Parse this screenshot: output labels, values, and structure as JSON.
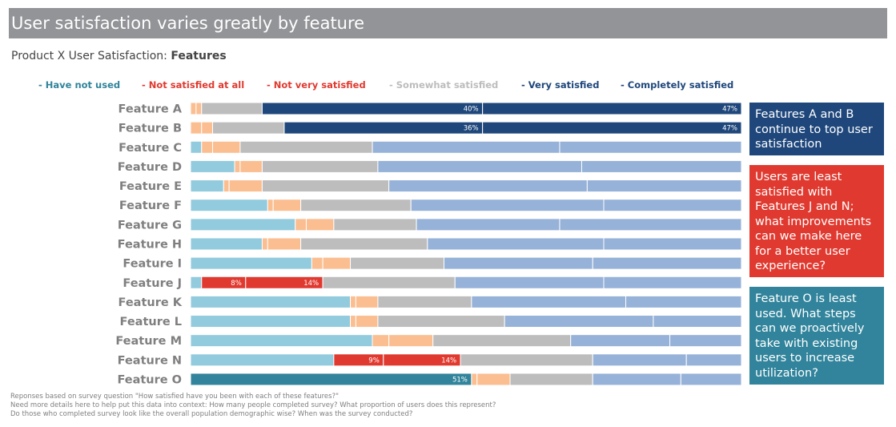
{
  "header": {
    "banner_title": "User satisfaction varies greatly by feature",
    "subtitle_prefix": "Product X User Satisfaction: ",
    "subtitle_bold": "Features"
  },
  "chart_data": {
    "type": "bar",
    "orientation": "horizontal",
    "stacked": true,
    "normalized_to_percent": true,
    "categories": [
      "Feature A",
      "Feature B",
      "Feature C",
      "Feature D",
      "Feature E",
      "Feature F",
      "Feature G",
      "Feature H",
      "Feature I",
      "Feature J",
      "Feature K",
      "Feature L",
      "Feature M",
      "Feature N",
      "Feature O"
    ],
    "series": [
      {
        "name": "Have not used",
        "color": "#92cbdd",
        "values": [
          0,
          0,
          2,
          8,
          6,
          14,
          19,
          13,
          22,
          2,
          29,
          29,
          33,
          26,
          51
        ]
      },
      {
        "name": "Not satisfied at all",
        "color": "#fbbe91",
        "values": [
          1,
          2,
          2,
          1,
          1,
          1,
          2,
          1,
          2,
          8,
          1,
          1,
          3,
          9,
          1
        ]
      },
      {
        "name": "Not very satisfied",
        "color": "#fbbe91",
        "values": [
          1,
          2,
          5,
          4,
          6,
          5,
          5,
          6,
          5,
          14,
          4,
          4,
          8,
          14,
          6
        ]
      },
      {
        "name": "Somewhat satisfied",
        "color": "#bdbdbd",
        "values": [
          11,
          13,
          24,
          21,
          23,
          20,
          15,
          23,
          17,
          24,
          17,
          23,
          25,
          24,
          15
        ]
      },
      {
        "name": "Very satisfied",
        "color": "#96b2d8",
        "values": [
          40,
          36,
          34,
          37,
          36,
          35,
          26,
          32,
          27,
          27,
          28,
          27,
          18,
          17,
          16
        ]
      },
      {
        "name": "Completely satisfied",
        "color": "#96b2d8",
        "values": [
          47,
          47,
          33,
          29,
          28,
          25,
          33,
          25,
          27,
          25,
          21,
          16,
          13,
          10,
          11
        ]
      }
    ],
    "highlight_colors": {
      "Feature A": {
        "Very satisfied": "#1f477b",
        "Completely satisfied": "#1f477b"
      },
      "Feature B": {
        "Very satisfied": "#1f477b",
        "Completely satisfied": "#1f477b"
      },
      "Feature J": {
        "Not satisfied at all": "#e03a30",
        "Not very satisfied": "#e03a30"
      },
      "Feature N": {
        "Not satisfied at all": "#e03a30",
        "Not very satisfied": "#e03a30"
      },
      "Feature O": {
        "Have not used": "#31849b"
      }
    },
    "data_labels": [
      {
        "category": "Feature A",
        "series": "Very satisfied",
        "text": "40%"
      },
      {
        "category": "Feature A",
        "series": "Completely satisfied",
        "text": "47%"
      },
      {
        "category": "Feature B",
        "series": "Very satisfied",
        "text": "36%"
      },
      {
        "category": "Feature B",
        "series": "Completely satisfied",
        "text": "47%"
      },
      {
        "category": "Feature J",
        "series": "Not satisfied at all",
        "text": "8%"
      },
      {
        "category": "Feature J",
        "series": "Not very satisfied",
        "text": "14%"
      },
      {
        "category": "Feature N",
        "series": "Not satisfied at all",
        "text": "9%"
      },
      {
        "category": "Feature N",
        "series": "Not very satisfied",
        "text": "14%"
      },
      {
        "category": "Feature O",
        "series": "Have not used",
        "text": "51%"
      }
    ],
    "xlim": [
      0,
      100
    ],
    "grid": false,
    "legend_position": "top"
  },
  "legend": [
    {
      "text": "- Have not used",
      "color": "#31849b"
    },
    {
      "text": "- Not satisfied at all",
      "color": "#e03a30"
    },
    {
      "text": "- Not very satisfied",
      "color": "#e03a30"
    },
    {
      "text": "- Somewhat satisfied",
      "color": "#bdbdbd"
    },
    {
      "text": "- Very satisfied",
      "color": "#1f477b"
    },
    {
      "text": "- Completely satisfied",
      "color": "#1f477b"
    }
  ],
  "callouts": [
    {
      "text": "Features A and B continue to top user satisfaction",
      "color": "#1f477b"
    },
    {
      "text": "Users are least satisfied with Features J and N; what improvements can we make here for a better user experience?",
      "color": "#e03a30"
    },
    {
      "text": "Feature O is least used. What steps can we proactively take with existing users to increase utilization?",
      "color": "#31849b"
    }
  ],
  "footnote": {
    "line1": "Reponses based on survey question \"How satisfied have you been with each of these features?\"",
    "line2": "Need more details here to help put this data into context: How many people completed survey? What proportion of users does this represent?",
    "line3": "Do those who completed survey look like the overall population demographic wise? When was the survey conducted?"
  }
}
